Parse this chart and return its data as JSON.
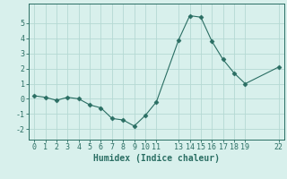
{
  "x": [
    0,
    1,
    2,
    3,
    4,
    5,
    6,
    7,
    8,
    9,
    10,
    11,
    13,
    14,
    15,
    16,
    17,
    18,
    19,
    22
  ],
  "y": [
    0.2,
    0.1,
    -0.1,
    0.1,
    0.0,
    -0.4,
    -0.6,
    -1.3,
    -1.4,
    -1.8,
    -1.1,
    -0.2,
    3.9,
    5.5,
    5.4,
    3.8,
    2.6,
    1.7,
    1.0,
    2.1
  ],
  "xlabel": "Humidex (Indice chaleur)",
  "xlim": [
    -0.5,
    22.5
  ],
  "ylim": [
    -2.7,
    6.3
  ],
  "xticks": [
    0,
    1,
    2,
    3,
    4,
    5,
    6,
    7,
    8,
    9,
    10,
    11,
    13,
    14,
    15,
    16,
    17,
    18,
    19,
    22
  ],
  "yticks": [
    -2,
    -1,
    0,
    1,
    2,
    3,
    4,
    5
  ],
  "line_color": "#2a6e63",
  "marker": "D",
  "marker_size": 2.5,
  "bg_color": "#d8f0ec",
  "grid_color": "#b5d9d3",
  "axis_color": "#2a6e63",
  "label_color": "#2a6e63",
  "tick_fontsize": 6,
  "xlabel_fontsize": 7
}
